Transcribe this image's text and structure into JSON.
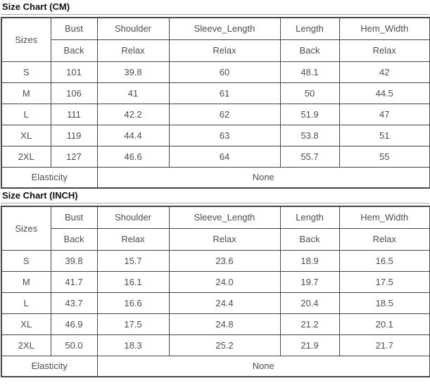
{
  "tables": [
    {
      "title": "Size Chart (CM)",
      "header": {
        "sizes_label": "Sizes",
        "columns": [
          {
            "name": "Bust",
            "sub": "Back"
          },
          {
            "name": "Shoulder",
            "sub": "Relax"
          },
          {
            "name": "Sleeve_Length",
            "sub": "Relax"
          },
          {
            "name": "Length",
            "sub": "Back"
          },
          {
            "name": "Hem_Width",
            "sub": "Relax"
          }
        ]
      },
      "rows": [
        {
          "size": "S",
          "cells": [
            "101",
            "39.8",
            "60",
            "48.1",
            "42"
          ]
        },
        {
          "size": "M",
          "cells": [
            "106",
            "41",
            "61",
            "50",
            "44.5"
          ]
        },
        {
          "size": "L",
          "cells": [
            "111",
            "42.2",
            "62",
            "51.9",
            "47"
          ]
        },
        {
          "size": "XL",
          "cells": [
            "119",
            "44.4",
            "63",
            "53.8",
            "51"
          ]
        },
        {
          "size": "2XL",
          "cells": [
            "127",
            "46.6",
            "64",
            "55.7",
            "55"
          ]
        }
      ],
      "footer": {
        "label": "Elasticity",
        "value": "None"
      }
    },
    {
      "title": "Size Chart (INCH)",
      "header": {
        "sizes_label": "Sizes",
        "columns": [
          {
            "name": "Bust",
            "sub": "Back"
          },
          {
            "name": "Shoulder",
            "sub": "Relax"
          },
          {
            "name": "Sleeve_Length",
            "sub": "Relax"
          },
          {
            "name": "Length",
            "sub": "Back"
          },
          {
            "name": "Hem_Width",
            "sub": "Relax"
          }
        ]
      },
      "rows": [
        {
          "size": "S",
          "cells": [
            "39.8",
            "15.7",
            "23.6",
            "18.9",
            "16.5"
          ]
        },
        {
          "size": "M",
          "cells": [
            "41.7",
            "16.1",
            "24.0",
            "19.7",
            "17.5"
          ]
        },
        {
          "size": "L",
          "cells": [
            "43.7",
            "16.6",
            "24.4",
            "20.4",
            "18.5"
          ]
        },
        {
          "size": "XL",
          "cells": [
            "46.9",
            "17.5",
            "24.8",
            "21.2",
            "20.1"
          ]
        },
        {
          "size": "2XL",
          "cells": [
            "50.0",
            "18.3",
            "25.2",
            "21.9",
            "21.7"
          ]
        }
      ],
      "footer": {
        "label": "Elasticity",
        "value": "None"
      }
    }
  ]
}
